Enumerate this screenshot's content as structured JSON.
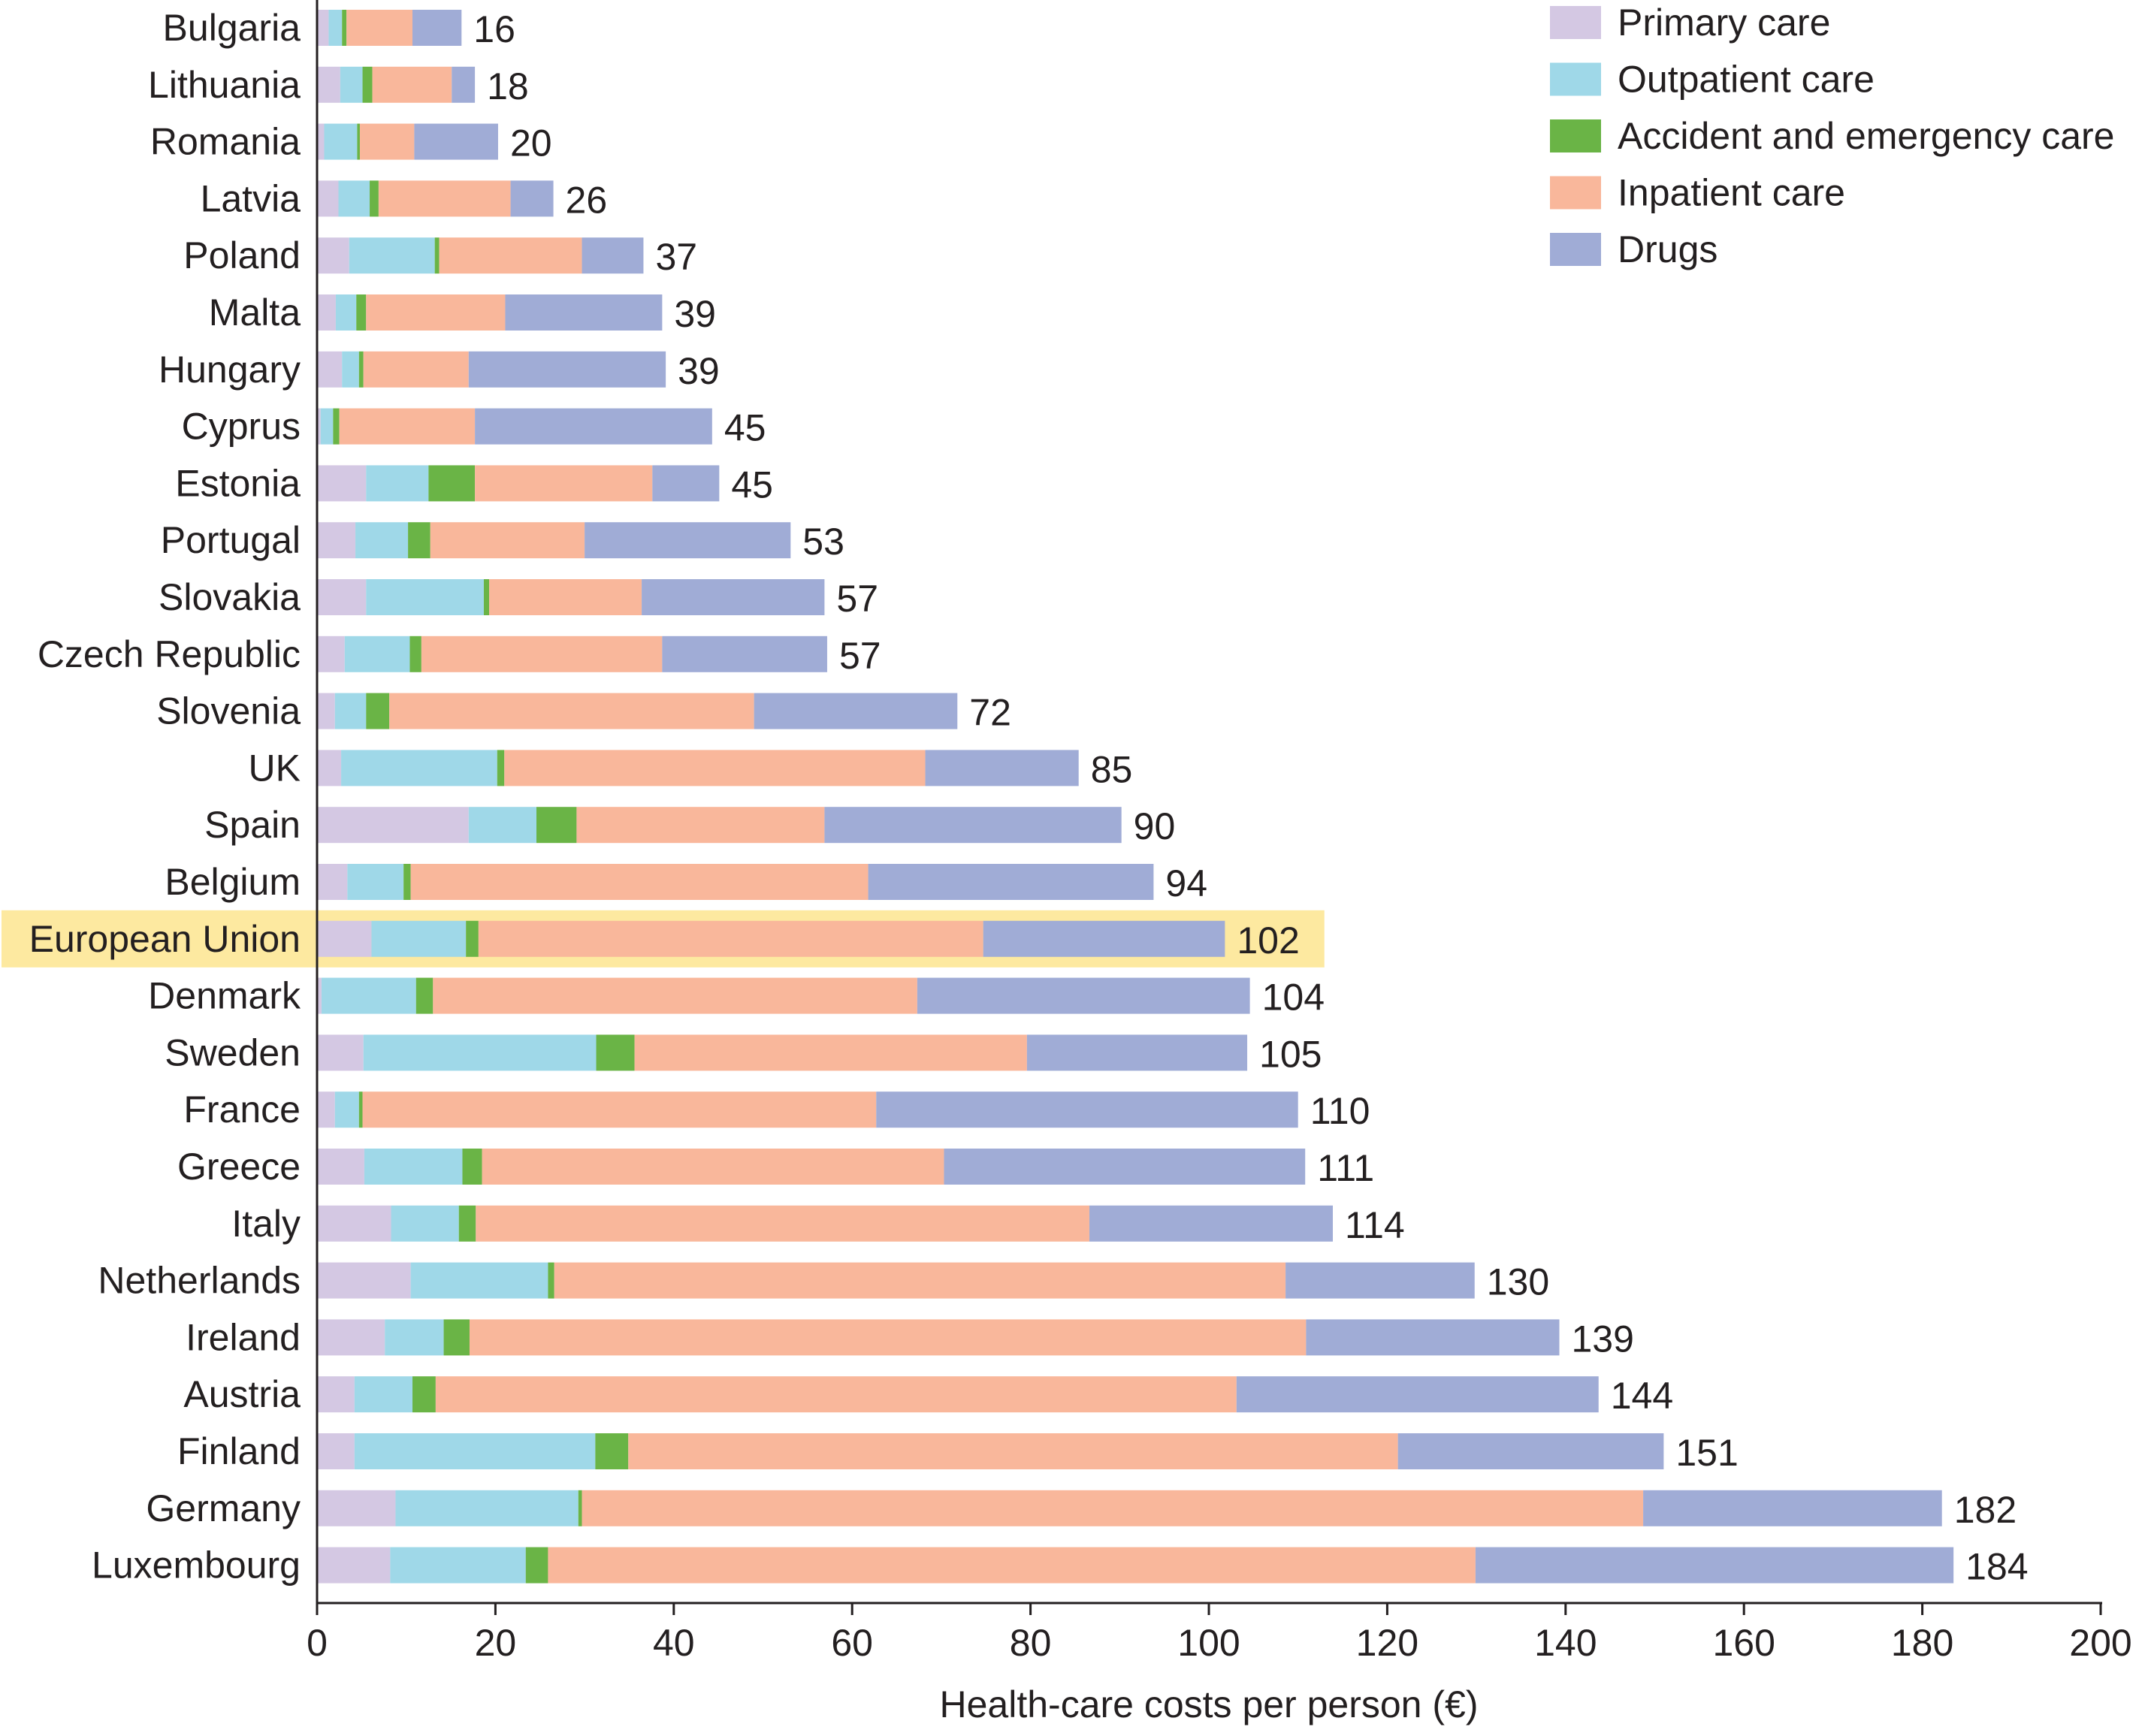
{
  "chart_data": {
    "type": "bar",
    "orientation": "horizontal",
    "stacked": true,
    "title": "",
    "xlabel": "Health-care costs per person (€)",
    "ylabel": "",
    "xlim": [
      0,
      200
    ],
    "xticks": [
      "0",
      "20",
      "40",
      "60",
      "80",
      "100",
      "120",
      "140",
      "160",
      "180",
      "200"
    ],
    "grid": false,
    "legend_position": "top-right",
    "highlight": {
      "category": "European Union",
      "color": "#fde9a0"
    },
    "categories": [
      "Bulgaria",
      "Lithuania",
      "Romania",
      "Latvia",
      "Poland",
      "Malta",
      "Hungary",
      "Cyprus",
      "Estonia",
      "Portugal",
      "Slovakia",
      "Czech Republic",
      "Slovenia",
      "UK",
      "Spain",
      "Belgium",
      "European Union",
      "Denmark",
      "Sweden",
      "France",
      "Greece",
      "Italy",
      "Netherlands",
      "Ireland",
      "Austria",
      "Finland",
      "Germany",
      "Luxembourg"
    ],
    "totals": [
      "16",
      "18",
      "20",
      "26",
      "37",
      "39",
      "39",
      "45",
      "45",
      "53",
      "57",
      "57",
      "72",
      "85",
      "90",
      "94",
      "102",
      "104",
      "105",
      "110",
      "111",
      "114",
      "130",
      "139",
      "144",
      "151",
      "182",
      "184"
    ],
    "series": [
      {
        "name": "Primary care",
        "color": "#d4c8e3",
        "values": [
          1.3,
          2.6,
          0.8,
          2.4,
          3.6,
          2.1,
          2.8,
          0.4,
          5.5,
          4.3,
          5.5,
          3.1,
          2.0,
          2.7,
          17.0,
          3.4,
          6.1,
          0.5,
          5.2,
          2.0,
          5.3,
          8.3,
          10.5,
          7.6,
          4.2,
          4.2,
          8.8,
          8.2
        ]
      },
      {
        "name": "Outpatient care",
        "color": "#9fd8e8",
        "values": [
          1.5,
          2.5,
          3.7,
          3.5,
          9.6,
          2.3,
          1.9,
          1.4,
          7.0,
          5.9,
          13.2,
          7.3,
          3.5,
          17.5,
          7.6,
          6.3,
          10.6,
          10.6,
          26.1,
          2.7,
          11.0,
          7.6,
          15.4,
          6.6,
          6.5,
          27.0,
          20.5,
          15.2
        ]
      },
      {
        "name": "Accident and emergency care",
        "color": "#6ab446",
        "values": [
          0.5,
          1.1,
          0.3,
          1.0,
          0.5,
          1.1,
          0.5,
          0.7,
          5.2,
          2.5,
          0.6,
          1.3,
          2.6,
          0.8,
          4.5,
          0.8,
          1.4,
          1.9,
          4.3,
          0.4,
          2.2,
          1.9,
          0.7,
          2.9,
          2.6,
          3.7,
          0.4,
          2.5
        ]
      },
      {
        "name": "Inpatient care",
        "color": "#f9b79b",
        "values": [
          7.4,
          8.9,
          6.1,
          14.8,
          16.0,
          15.6,
          11.8,
          15.2,
          19.9,
          17.3,
          17.1,
          27.0,
          40.9,
          47.2,
          27.8,
          51.3,
          56.6,
          54.3,
          44.0,
          57.6,
          51.8,
          68.8,
          82.0,
          93.8,
          89.8,
          86.3,
          119.0,
          104.0
        ]
      },
      {
        "name": "Drugs",
        "color": "#a0acd6",
        "values": [
          5.5,
          2.6,
          9.4,
          4.8,
          6.9,
          17.6,
          22.1,
          26.6,
          7.5,
          23.1,
          20.5,
          18.5,
          22.8,
          17.2,
          33.3,
          32.0,
          27.1,
          37.3,
          24.7,
          47.3,
          40.5,
          27.3,
          21.2,
          28.4,
          40.6,
          29.8,
          33.5,
          53.6
        ]
      }
    ]
  }
}
